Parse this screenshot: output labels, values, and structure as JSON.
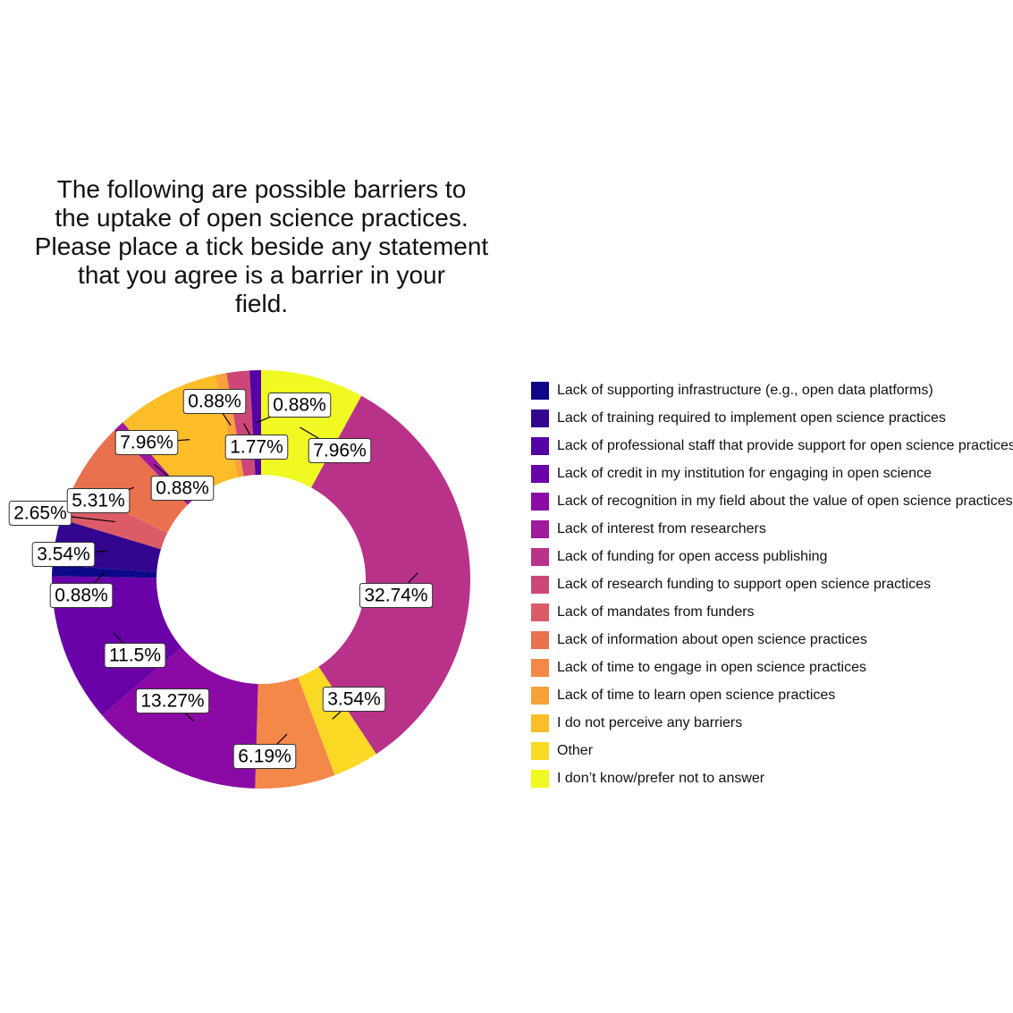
{
  "chart_data": {
    "type": "pie",
    "variant": "donut",
    "title": "The following are possible barriers to\nthe uptake of open science practices.\nPlease place a tick beside any statement\nthat you agree is a barrier in your\nfield.",
    "legend_position": "right",
    "categories": [
      "Lack of supporting infrastructure (e.g., open data platforms)",
      "Lack of training required to implement open science practices",
      "Lack of professional staff that provide support for open science practices",
      "Lack of credit in my institution for engaging in open science",
      "Lack of recognition in my field about the value of open science practices",
      "Lack of interest from researchers",
      "Lack of funding for open access publishing",
      "Lack of research funding to support open science practices",
      "Lack of mandates from funders",
      "Lack of information about open science practices",
      "Lack of time to engage in open science practices",
      "Lack of time to learn open science practices",
      "I do not perceive any barriers",
      "Other",
      "I don’t know/prefer not to answer"
    ],
    "colors": [
      "#0D0887",
      "#33058E",
      "#5402A3",
      "#6A00A8",
      "#8B0AA5",
      "#A01A9C",
      "#B83289",
      "#CC4778",
      "#DB5C68",
      "#E9714E",
      "#F48849",
      "#F8A13A",
      "#FDBD29",
      "#FAD925",
      "#F0F921"
    ],
    "values": [
      0.88,
      3.54,
      0.88,
      11.5,
      13.27,
      0.88,
      32.74,
      1.77,
      2.65,
      5.31,
      6.19,
      0.88,
      7.96,
      3.54,
      7.96
    ],
    "segments": [
      {
        "category": "I don’t know/prefer not to answer",
        "value": 7.96,
        "label": "7.96%"
      },
      {
        "category": "Lack of funding for open access publishing",
        "value": 32.74,
        "label": "32.74%"
      },
      {
        "category": "Other",
        "value": 3.54,
        "label": "3.54%"
      },
      {
        "category": "Lack of time to engage in open science practices",
        "value": 6.19,
        "label": "6.19%"
      },
      {
        "category": "Lack of recognition in my field about the value of open science practices",
        "value": 13.27,
        "label": "13.27%"
      },
      {
        "category": "Lack of credit in my institution for engaging in open science",
        "value": 11.5,
        "label": "11.5%"
      },
      {
        "category": "Lack of supporting infrastructure (e.g., open data platforms)",
        "value": 0.88,
        "label": "0.88%"
      },
      {
        "category": "Lack of training required to implement open science practices",
        "value": 3.54,
        "label": "3.54%"
      },
      {
        "category": "Lack of mandates from funders",
        "value": 2.65,
        "label": "2.65%"
      },
      {
        "category": "Lack of information about open science practices",
        "value": 5.31,
        "label": "5.31%"
      },
      {
        "category": "Lack of interest from researchers",
        "value": 0.88,
        "label": "0.88%"
      },
      {
        "category": "I do not perceive any barriers",
        "value": 7.96,
        "label": "7.96%"
      },
      {
        "category": "Lack of time to learn open science practices",
        "value": 0.88,
        "label": "0.88%"
      },
      {
        "category": "Lack of research funding to support open science practices",
        "value": 1.77,
        "label": "1.77%"
      },
      {
        "category": "Lack of professional staff that provide support for open science practices",
        "value": 0.88,
        "label": "0.88%"
      }
    ]
  }
}
